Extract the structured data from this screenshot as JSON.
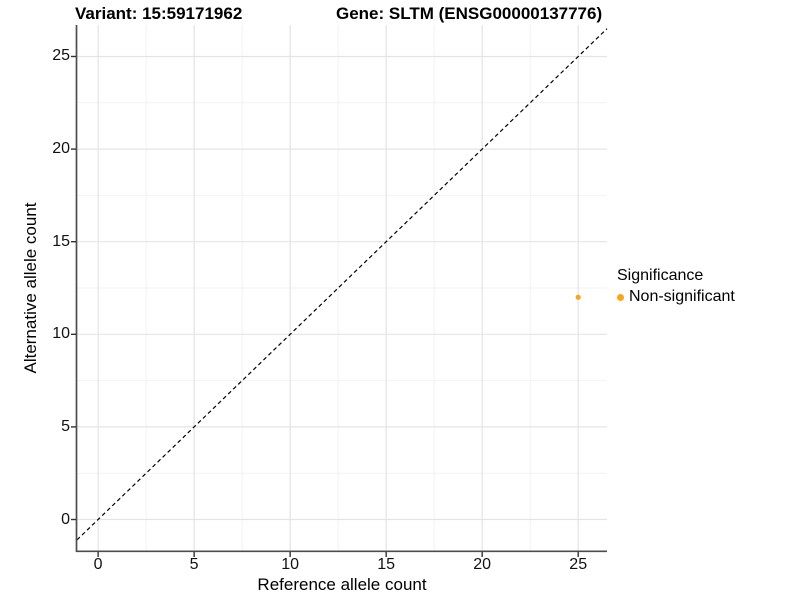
{
  "chart_data": {
    "type": "scatter",
    "title_left": "Variant: 15:59171962",
    "title_right": "Gene: SLTM (ENSG00000137776)",
    "xlabel": "Reference allele count",
    "ylabel": "Alternative allele count",
    "xlim": [
      -1.1,
      26.5
    ],
    "ylim": [
      -1.7,
      26.7
    ],
    "xticks": [
      0,
      5,
      10,
      15,
      20,
      25
    ],
    "yticks": [
      0,
      5,
      10,
      15,
      20,
      25
    ],
    "xticks_minor": [
      2.5,
      7.5,
      12.5,
      17.5,
      22.5
    ],
    "yticks_minor": [
      2.5,
      7.5,
      12.5,
      17.5,
      22.5
    ],
    "grid": "major+minor",
    "reference_line": {
      "type": "identity",
      "slope": 1,
      "intercept": 0,
      "style": "dashed",
      "color": "#000000"
    },
    "points": [
      {
        "x": 25,
        "y": 12,
        "series": "Non-significant"
      }
    ],
    "point_color": "#FAA51A",
    "point_radius_px": 2.6,
    "legend": {
      "title": "Significance",
      "position": "right",
      "items": [
        {
          "label": "Non-significant",
          "color": "#FAA51A"
        }
      ]
    },
    "colors": {
      "background": "#FFFFFF",
      "grid_major": "#E4E4E4",
      "grid_minor": "#F2F2F2",
      "axis_line": "#4D4D4D",
      "tick_mark": "#333333",
      "text": "#000000"
    }
  }
}
